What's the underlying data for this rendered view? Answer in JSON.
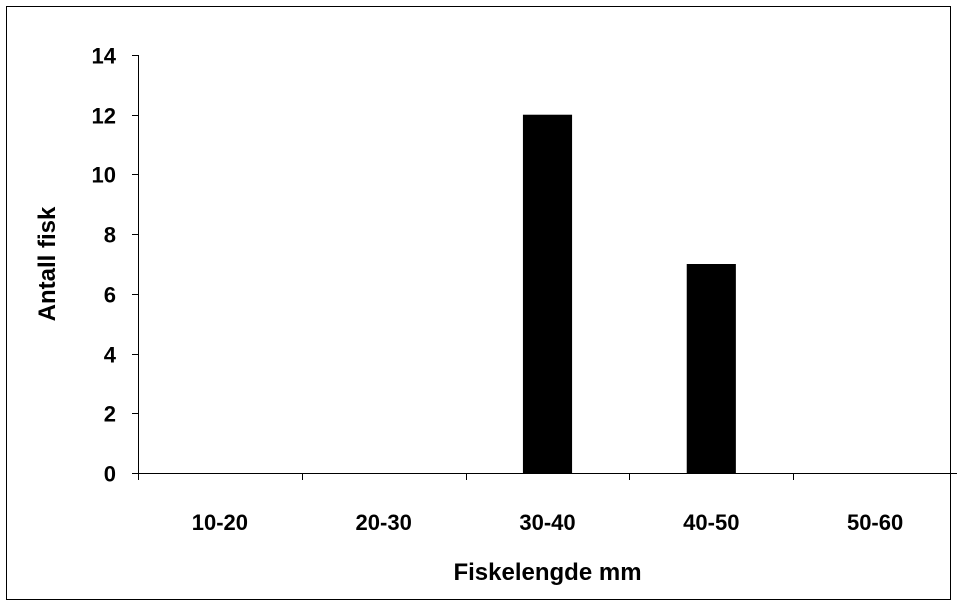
{
  "chart_data": {
    "type": "bar",
    "title": "",
    "xlabel": "Fiskelengde mm",
    "ylabel": "Antall fisk",
    "categories": [
      "10-20",
      "20-30",
      "30-40",
      "40-50",
      "50-60"
    ],
    "values": [
      0,
      0,
      12,
      7,
      0
    ],
    "ylim": [
      0,
      14
    ],
    "yticks": [
      "0",
      "2",
      "4",
      "6",
      "8",
      "10",
      "12",
      "14"
    ],
    "grid": false,
    "legend": "none",
    "bar_color": "#000000"
  }
}
